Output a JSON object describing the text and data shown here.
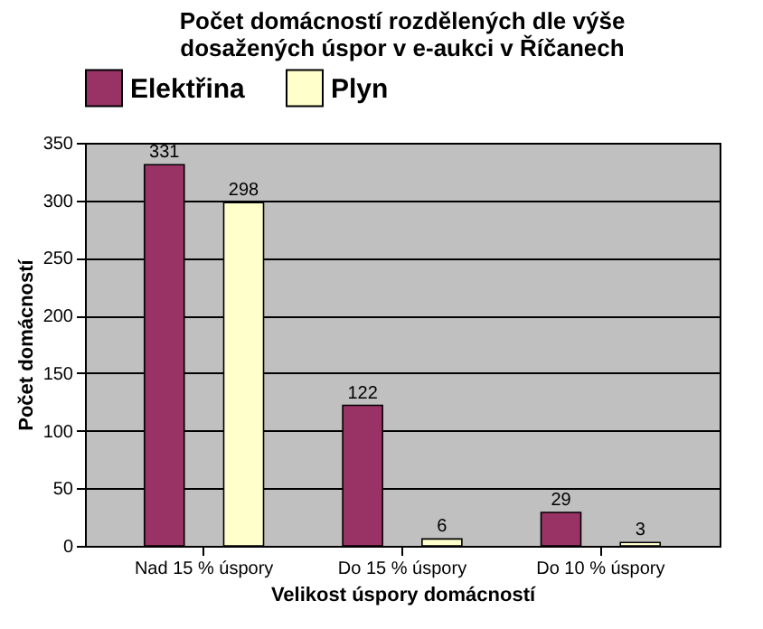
{
  "chart_data": {
    "type": "bar",
    "title": "Počet domácností rozdělených dle výše dosažených úspor v e-aukci v Říčanech",
    "categories": [
      "Nad 15 % úspory",
      "Do 15 % úspory",
      "Do 10 % úspory"
    ],
    "series": [
      {
        "name": "Elektřina",
        "color": "#993366",
        "values": [
          331,
          122,
          29
        ]
      },
      {
        "name": "Plyn",
        "color": "#ffffcc",
        "values": [
          298,
          6,
          3
        ]
      }
    ],
    "xlabel": "Velikost úspory domácností",
    "ylabel": "Počet domácností",
    "ylim": [
      0,
      350
    ],
    "yticks": [
      0,
      50,
      100,
      150,
      200,
      250,
      300,
      350
    ],
    "grid": "y",
    "legend": "top",
    "data_labels": true
  }
}
